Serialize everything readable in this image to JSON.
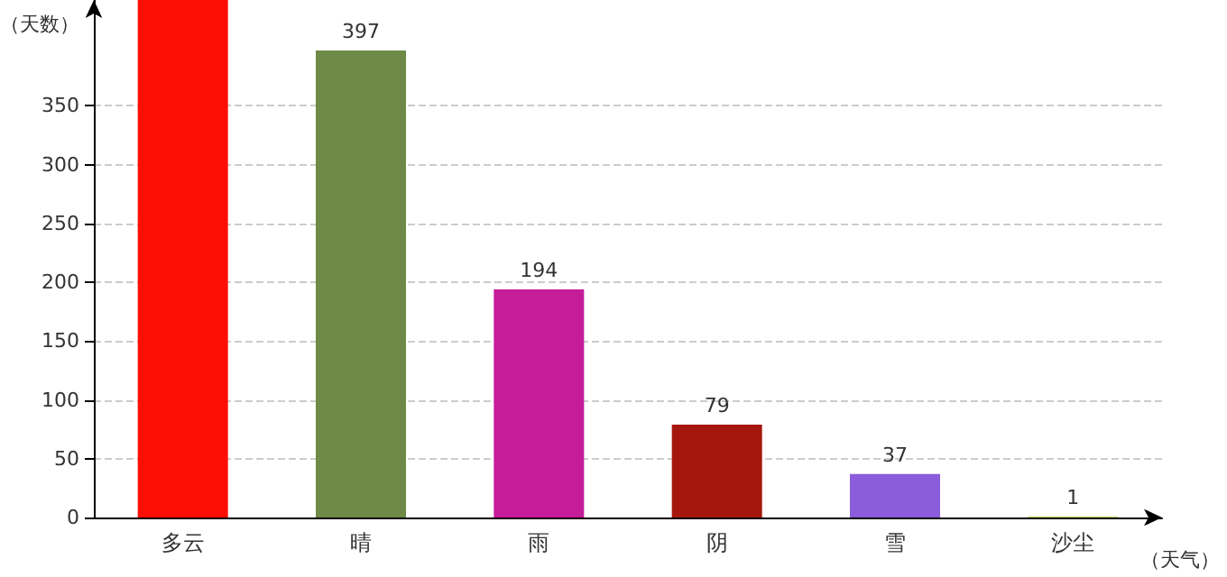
{
  "chart_data": {
    "type": "bar",
    "xlabel": "（天气）",
    "ylabel": "（天数）",
    "categories": [
      "多云",
      "晴",
      "雨",
      "阴",
      "雪",
      "沙尘"
    ],
    "values": [
      440,
      397,
      194,
      79,
      37,
      1
    ],
    "colors": [
      "#fe0f05",
      "#6e8a46",
      "#c51c99",
      "#a5170c",
      "#8b5cdc",
      "#c8d870"
    ],
    "value_labels": [
      null,
      "397",
      "194",
      "79",
      "37",
      "1"
    ],
    "ylim": [
      0,
      440
    ],
    "yticks": [
      0,
      50,
      100,
      150,
      200,
      250,
      300,
      350
    ],
    "grid": "y"
  }
}
